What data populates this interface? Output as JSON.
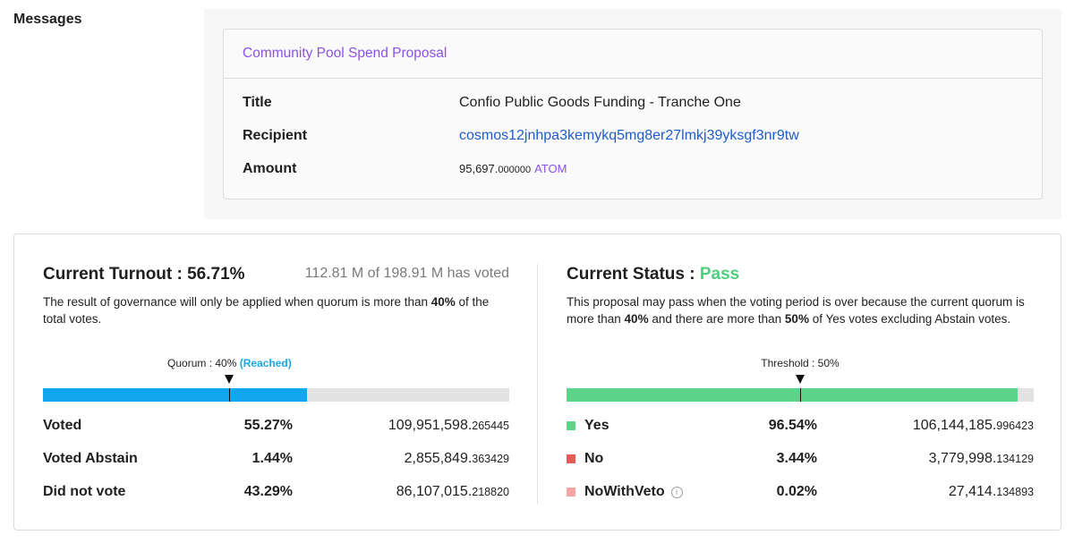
{
  "messages": {
    "label": "Messages",
    "card": {
      "type": "Community Pool Spend Proposal",
      "rows": {
        "title_key": "Title",
        "title_val": "Confio Public Goods Funding - Tranche One",
        "recipient_key": "Recipient",
        "recipient_val": "cosmos12jnhpa3kemykq5mg8er27lmkj39yksgf3nr9tw",
        "amount_key": "Amount",
        "amount_int": "95,697.",
        "amount_frac": "000000",
        "amount_denom": "ATOM"
      }
    }
  },
  "turnout": {
    "title": "Current Turnout : 56.71%",
    "voted_summary": "112.81 M of 198.91 M has voted",
    "desc_pre": "The result of governance will only be applied when quorum is more than ",
    "desc_bold": "40%",
    "desc_post": " of the total votes.",
    "marker_label": "Quorum : 40%",
    "marker_status": "(Reached)",
    "quorum_fraction": 0.4,
    "fill_fraction": 0.5671,
    "rows": [
      {
        "name": "Voted",
        "pct": "55.27%",
        "int": "109,951,598.",
        "frac": "265445"
      },
      {
        "name": "Voted Abstain",
        "pct": "1.44%",
        "int": "2,855,849.",
        "frac": "363429"
      },
      {
        "name": "Did not vote",
        "pct": "43.29%",
        "int": "86,107,015.",
        "frac": "218820"
      }
    ]
  },
  "status": {
    "title_prefix": "Current Status : ",
    "title_value": "Pass",
    "desc_1": "This proposal may pass when the voting period is over because the current quorum is more than ",
    "desc_bold_1": "40%",
    "desc_2": " and there are more than ",
    "desc_bold_2": "50%",
    "desc_3": " of Yes votes excluding Abstain votes.",
    "marker_label": "Threshold : 50%",
    "threshold_fraction": 0.5,
    "fill_fraction": 0.9654,
    "rows": [
      {
        "name": "Yes",
        "pct": "96.54%",
        "int": "106,144,185.",
        "frac": "996423",
        "color": "#5bd48a"
      },
      {
        "name": "No",
        "pct": "3.44%",
        "int": "3,779,998.",
        "frac": "134129",
        "color": "#e85a5a"
      },
      {
        "name": "NoWithVeto",
        "pct": "0.02%",
        "int": "27,414.",
        "frac": "134893",
        "color": "#f5a3a3",
        "icon": "info-icon"
      }
    ]
  },
  "colors": {
    "turnout_bar": "#10a6f0",
    "status_bar": "#5bd48a",
    "accent_purple": "#8c52e6",
    "link_blue": "#1f5ccc",
    "pass_green": "#4fcf7d"
  }
}
